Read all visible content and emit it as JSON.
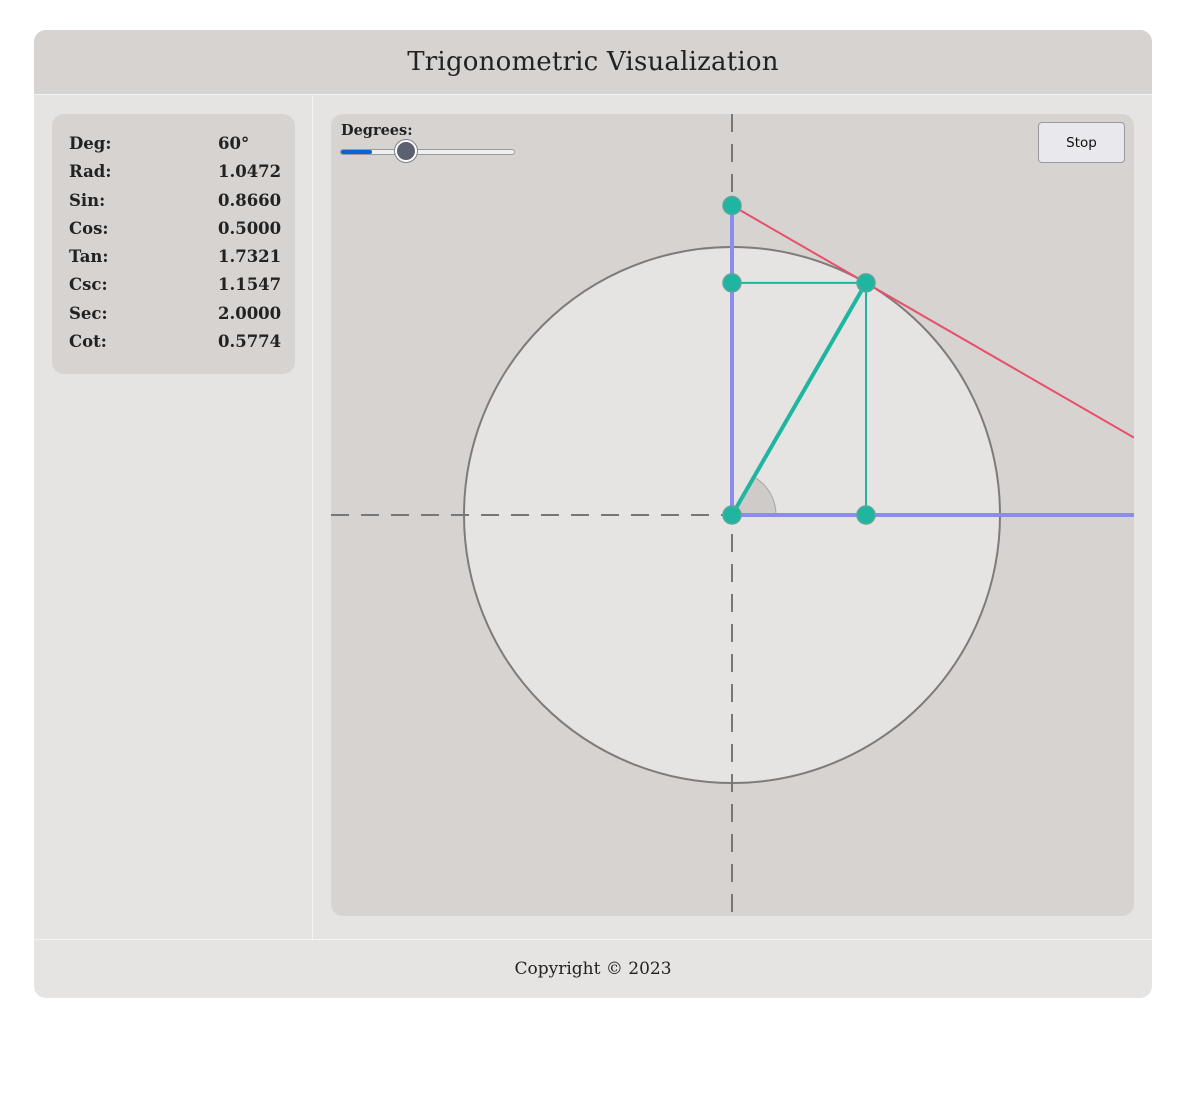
{
  "header": {
    "title": "Trigonometric Visualization"
  },
  "values": [
    {
      "label": "Deg:",
      "value": "60°"
    },
    {
      "label": "Rad:",
      "value": "1.0472"
    },
    {
      "label": "Sin:",
      "value": "0.8660"
    },
    {
      "label": "Cos:",
      "value": "0.5000"
    },
    {
      "label": "Tan:",
      "value": "1.7321"
    },
    {
      "label": "Csc:",
      "value": "1.1547"
    },
    {
      "label": "Sec:",
      "value": "2.0000"
    },
    {
      "label": "Cot:",
      "value": "0.5774"
    }
  ],
  "controls": {
    "slider_label": "Degrees:",
    "slider_value_deg": 60,
    "slider_max_deg": 360,
    "stop_label": "Stop"
  },
  "visual": {
    "angle_deg": 60,
    "colors": {
      "circle_fill": "#e5e4e3",
      "circle_stroke": "#807b78",
      "axis": "#777777",
      "blue": "#8a8cf0",
      "teal": "#1fb5a0",
      "red": "#e8506a",
      "point": "#1fb5a0"
    }
  },
  "footer": {
    "copyright": "Copyright © 2023"
  }
}
